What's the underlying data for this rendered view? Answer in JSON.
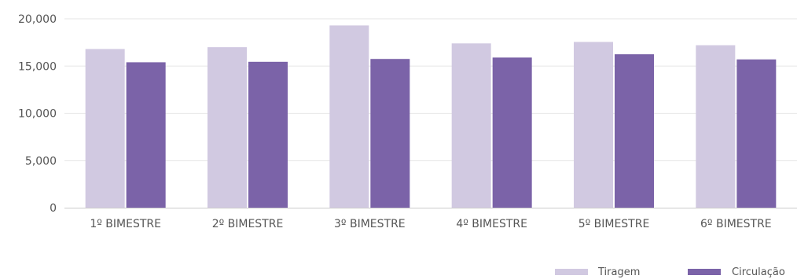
{
  "chart_data": {
    "type": "bar",
    "categories": [
      "1º BIMESTRE",
      "2º BIMESTRE",
      "3º BIMESTRE",
      "4º BIMESTRE",
      "5º BIMESTRE",
      "6º BIMESTRE"
    ],
    "series": [
      {
        "name": "Tiragem",
        "values": [
          16800,
          17000,
          19300,
          17400,
          17550,
          17200
        ],
        "color": "#d1c9e1"
      },
      {
        "name": "Circulação",
        "values": [
          15400,
          15450,
          15750,
          15900,
          16250,
          15700
        ],
        "color": "#7b63a8"
      }
    ],
    "y_ticks": [
      "0",
      "5,000",
      "10,000",
      "15,000",
      "20,000"
    ],
    "ylim": [
      0,
      20000
    ],
    "grid": true,
    "legend_position": "bottom-right",
    "title": "",
    "xlabel": "",
    "ylabel": ""
  }
}
